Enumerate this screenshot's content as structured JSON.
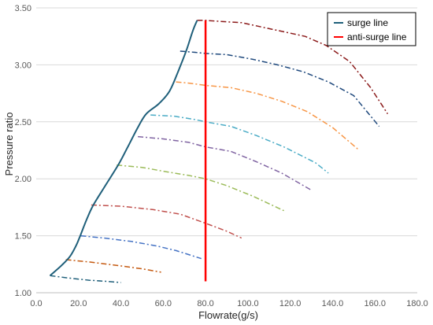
{
  "chart_data": {
    "type": "line",
    "xlabel": "Flowrate(g/s)",
    "ylabel": "Pressure ratio",
    "xlim": [
      0,
      180
    ],
    "ylim": [
      1.0,
      3.5
    ],
    "x_ticks": [
      0,
      20,
      40,
      60,
      80,
      100,
      120,
      140,
      160,
      180
    ],
    "x_tick_labels": [
      "0.0",
      "20.0",
      "40.0",
      "60.0",
      "80.0",
      "100.0",
      "120.0",
      "140.0",
      "160.0",
      "180.0"
    ],
    "y_ticks": [
      1.0,
      1.5,
      2.0,
      2.5,
      3.0,
      3.5
    ],
    "y_tick_labels": [
      "1.00",
      "1.50",
      "2.00",
      "2.50",
      "3.00",
      "3.50"
    ],
    "grid": "horizontal",
    "legend": {
      "placement": "top-right",
      "entries": [
        {
          "label": "surge line",
          "color": "#1f5f7a"
        },
        {
          "label": "anti-surge line",
          "color": "#ff0000"
        }
      ]
    },
    "surge_line": {
      "color": "#1f5f7a",
      "x": [
        6.5,
        12,
        16,
        19,
        21,
        24,
        27,
        33,
        39,
        43,
        48,
        52,
        58,
        63,
        67,
        71,
        74,
        76
      ],
      "y": [
        1.15,
        1.24,
        1.32,
        1.42,
        1.51,
        1.65,
        1.77,
        1.95,
        2.13,
        2.27,
        2.45,
        2.57,
        2.66,
        2.77,
        2.94,
        3.13,
        3.3,
        3.39
      ]
    },
    "anti_surge_line": {
      "color": "#ff0000",
      "x": [
        80,
        80
      ],
      "y": [
        1.1,
        3.39
      ]
    },
    "speed_lines": [
      {
        "color": "#1f5f7a",
        "x": [
          6.5,
          15,
          25,
          33,
          40
        ],
        "y": [
          1.15,
          1.13,
          1.11,
          1.1,
          1.09
        ]
      },
      {
        "color": "#c55a11",
        "x": [
          14,
          25,
          38,
          50,
          59
        ],
        "y": [
          1.29,
          1.27,
          1.24,
          1.21,
          1.18
        ]
      },
      {
        "color": "#4472c4",
        "x": [
          21,
          32,
          45,
          57,
          66,
          78
        ],
        "y": [
          1.5,
          1.48,
          1.45,
          1.41,
          1.37,
          1.3
        ]
      },
      {
        "color": "#c0504d",
        "x": [
          26,
          40,
          55,
          68,
          80,
          90,
          97
        ],
        "y": [
          1.77,
          1.76,
          1.73,
          1.69,
          1.61,
          1.54,
          1.48
        ]
      },
      {
        "color": "#9bbb59",
        "x": [
          38,
          50,
          62,
          72,
          80,
          90,
          102,
          117
        ],
        "y": [
          2.12,
          2.1,
          2.06,
          2.03,
          2.0,
          1.94,
          1.85,
          1.72
        ]
      },
      {
        "color": "#8064a2",
        "x": [
          48,
          60,
          72,
          80,
          92,
          104,
          116,
          130
        ],
        "y": [
          2.37,
          2.35,
          2.32,
          2.28,
          2.24,
          2.15,
          2.05,
          1.9
        ]
      },
      {
        "color": "#4bacc6",
        "x": [
          54,
          65,
          75,
          80,
          92,
          104,
          117,
          132,
          138
        ],
        "y": [
          2.56,
          2.55,
          2.52,
          2.5,
          2.46,
          2.38,
          2.28,
          2.14,
          2.05
        ]
      },
      {
        "color": "#f79646",
        "x": [
          66,
          72,
          80,
          92,
          104,
          116,
          128,
          140,
          152
        ],
        "y": [
          2.85,
          2.84,
          2.82,
          2.8,
          2.75,
          2.68,
          2.59,
          2.45,
          2.26
        ]
      },
      {
        "color": "#1f497d",
        "x": [
          68,
          75,
          80,
          90,
          102,
          114,
          126,
          138,
          150,
          162
        ],
        "y": [
          3.12,
          3.11,
          3.1,
          3.09,
          3.05,
          3.0,
          2.94,
          2.85,
          2.73,
          2.46
        ]
      },
      {
        "color": "#8b1a1a",
        "x": [
          76,
          80,
          88,
          97,
          107,
          117,
          127,
          137,
          148,
          158,
          166
        ],
        "y": [
          3.39,
          3.39,
          3.38,
          3.37,
          3.33,
          3.29,
          3.25,
          3.17,
          3.03,
          2.8,
          2.57
        ]
      }
    ]
  }
}
